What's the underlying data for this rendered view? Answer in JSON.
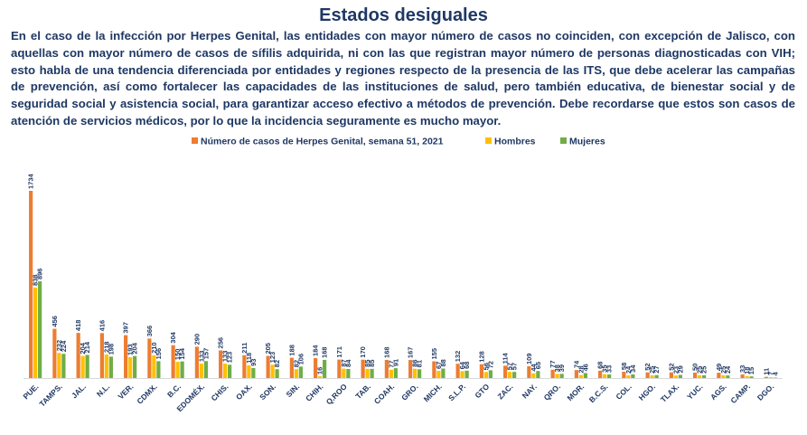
{
  "title": "Estados desiguales",
  "paragraph": "En el caso de la infección por Herpes Genital, las entidades con mayor número de casos no coinciden, con excepción de Jalisco, con aquellas con mayor número de casos de sífilis adquirida, ni con las que registran mayor número de personas diagnosticadas con VIH; esto habla de una tendencia diferenciada por entidades y regiones respecto de la presencia de las ITS, que debe acelerar las campañas de prevención, así como fortalecer las capacidades de las instituciones de salud, pero también educativa, de bienestar social y de seguridad social y asistencia social, para garantizar acceso efectivo a métodos de prevención. Debe recordarse que estos son casos de atención de servicios médicos, por lo que la incidencia seguramente es mucho mayor.",
  "chart_data": {
    "type": "bar",
    "legend_position": "top",
    "grid": false,
    "ylim": [
      0,
      1800
    ],
    "categories": [
      "PUE.",
      "TAMPS.",
      "JAL.",
      "N.L.",
      "VER.",
      "CDMX.",
      "B.C.",
      "EDOMÉX.",
      "CHIS.",
      "OAX.",
      "SON.",
      "SIN.",
      "CHIH.",
      "Q.ROO",
      "TAB.",
      "COAH.",
      "GRO.",
      "MICH.",
      "S.L.P.",
      "GTO",
      "ZAC.",
      "NAY.",
      "QRO.",
      "MOR.",
      "B.C.S.",
      "COL.",
      "HGO.",
      "TLAX.",
      "YUC.",
      "AGS.",
      "CAMP.",
      "DGO."
    ],
    "series": [
      {
        "name": "Número de casos de Herpes Genital, semana 51, 2021",
        "color": "#ed7d31",
        "values": [
          1734,
          456,
          418,
          416,
          397,
          366,
          304,
          290,
          256,
          211,
          205,
          188,
          184,
          171,
          170,
          168,
          167,
          155,
          132,
          128,
          114,
          109,
          77,
          74,
          68,
          58,
          52,
          52,
          50,
          49,
          33,
          11
        ]
      },
      {
        "name": "Hombres",
        "color": "#ffc000",
        "values": [
          838,
          232,
          204,
          218,
          193,
          210,
          150,
          133,
          133,
          118,
          123,
          82,
          16,
          87,
          85,
          77,
          86,
          67,
          64,
          56,
          57,
          44,
          38,
          28,
          35,
          24,
          25,
          23,
          25,
          25,
          18,
          7
        ]
      },
      {
        "name": "Mujeres",
        "color": "#70ad47",
        "values": [
          896,
          224,
          214,
          198,
          204,
          156,
          154,
          157,
          123,
          93,
          82,
          106,
          168,
          84,
          85,
          91,
          81,
          88,
          68,
          72,
          57,
          65,
          39,
          46,
          33,
          34,
          27,
          29,
          25,
          24,
          15,
          4
        ]
      }
    ]
  }
}
